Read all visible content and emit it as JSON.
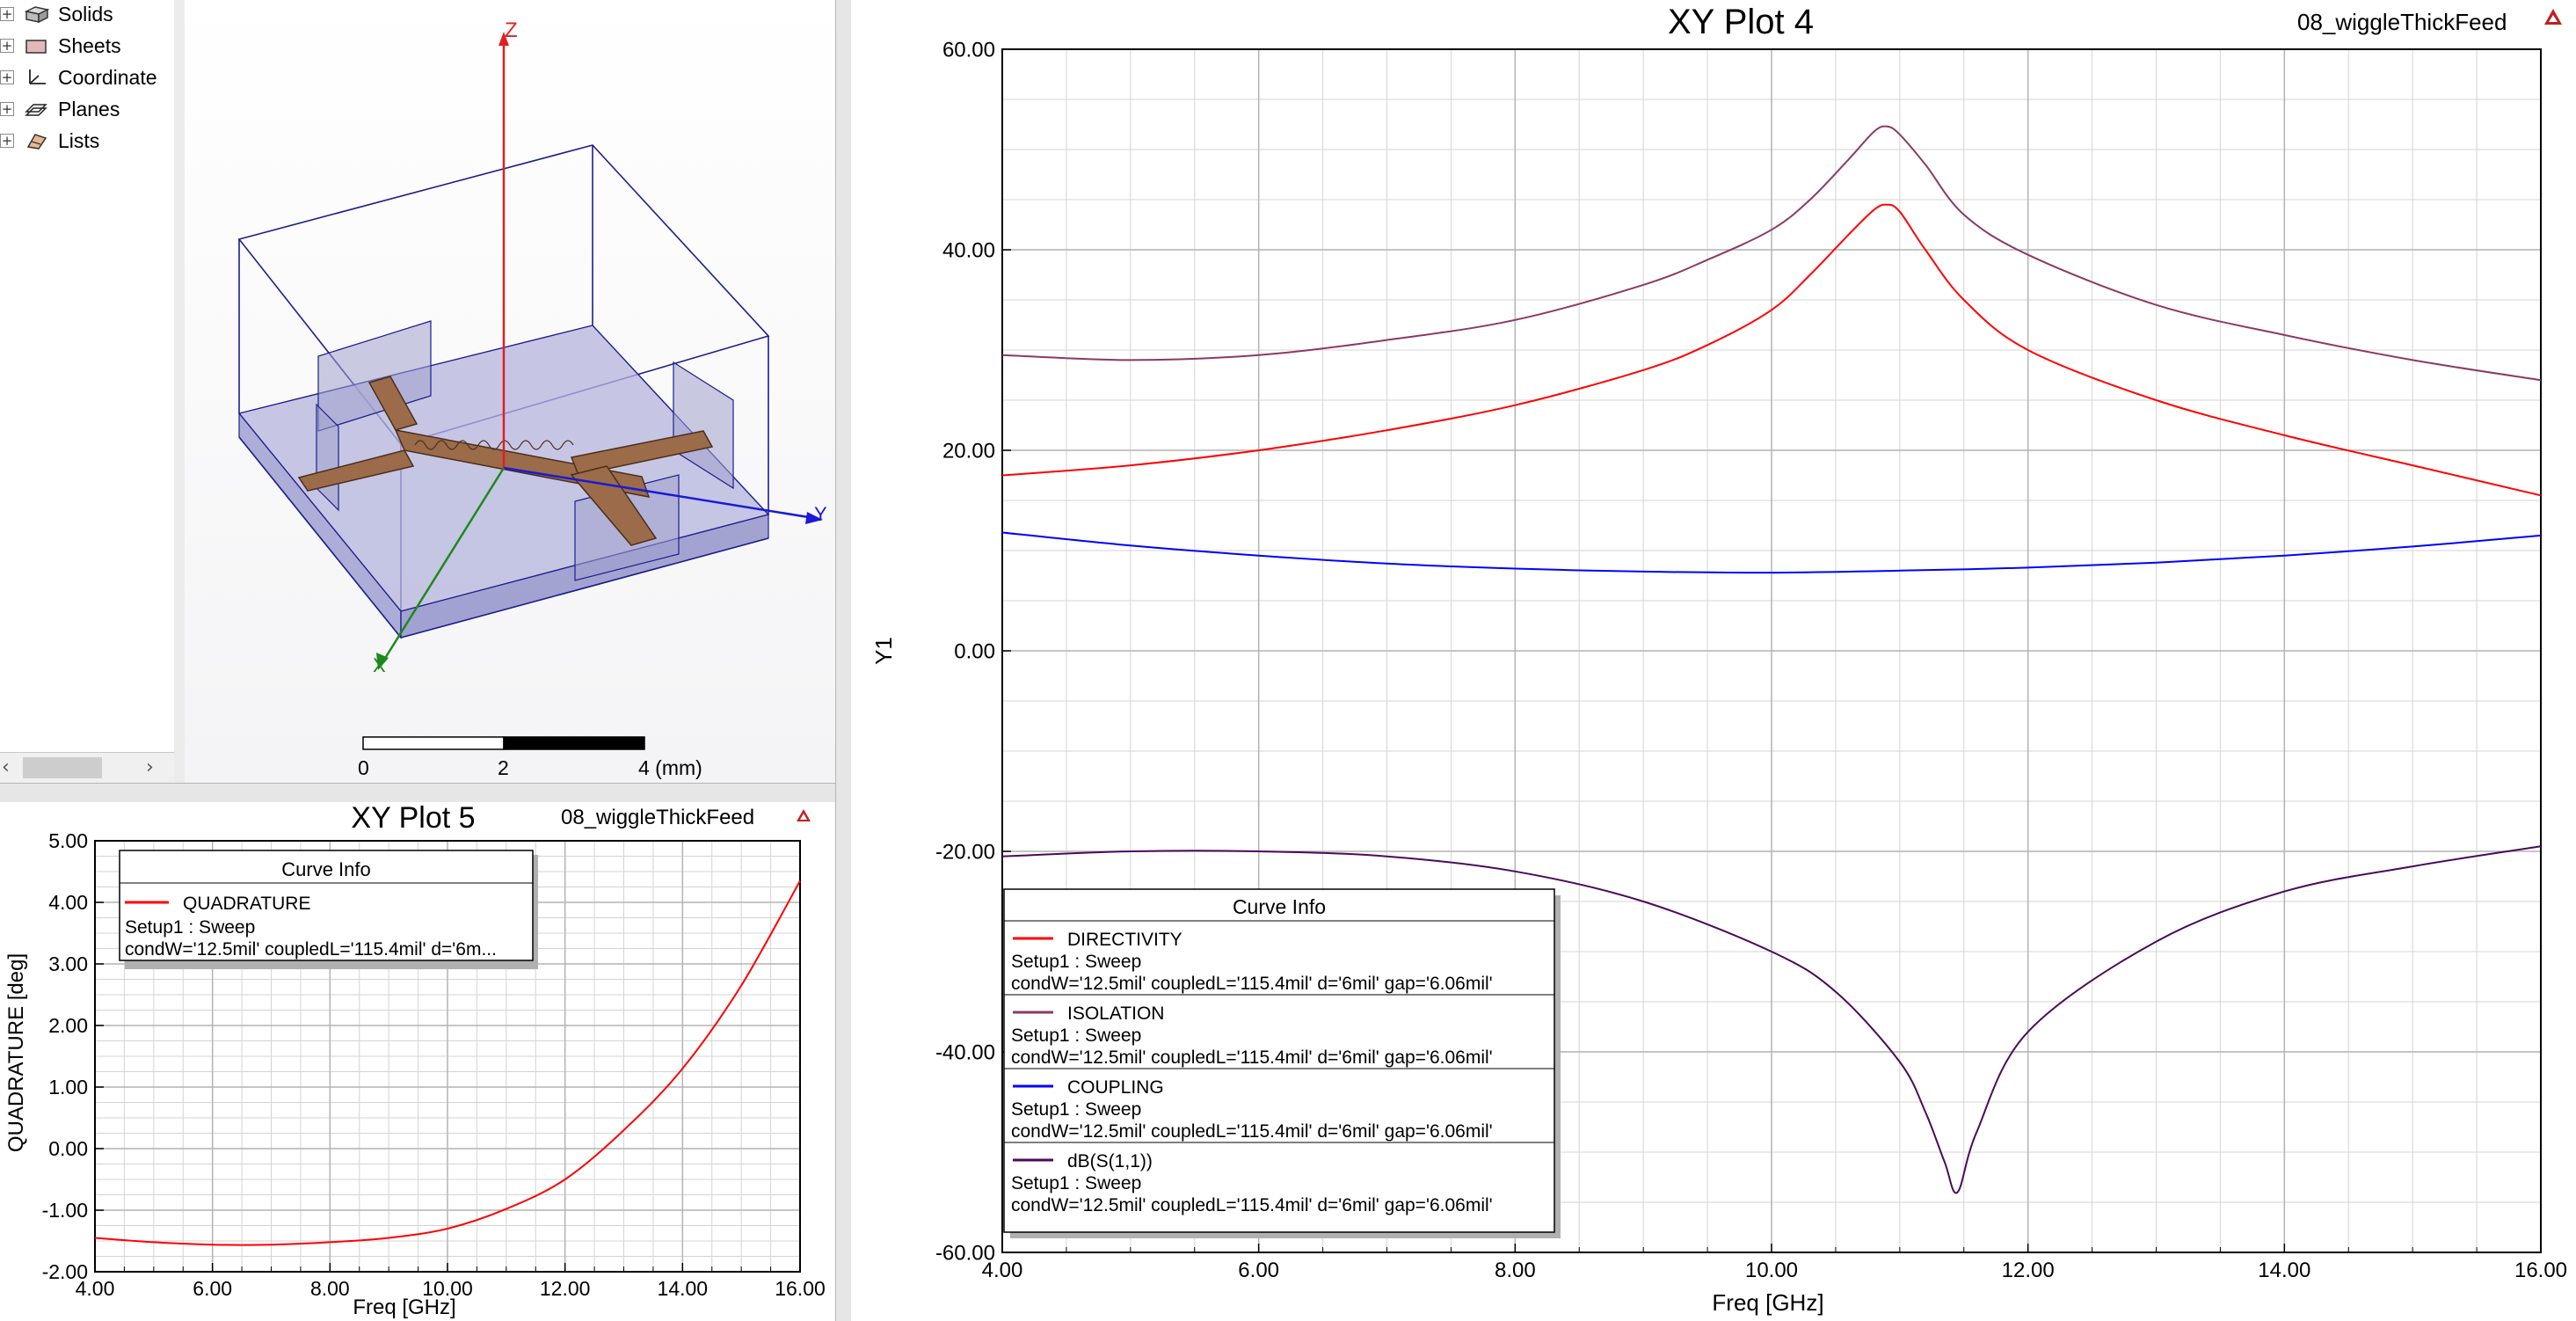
{
  "tree": {
    "items": [
      {
        "label": "Solids",
        "icon": "solids-icon"
      },
      {
        "label": "Sheets",
        "icon": "sheets-icon"
      },
      {
        "label": "Coordinate",
        "icon": "coordinate-icon"
      },
      {
        "label": "Planes",
        "icon": "planes-icon"
      },
      {
        "label": "Lists",
        "icon": "lists-icon"
      }
    ],
    "expander": "+"
  },
  "model_view": {
    "axes": {
      "z": "Z",
      "y": "Y",
      "x": "X"
    },
    "scale_ticks": [
      "0",
      "2",
      "4 (mm)"
    ]
  },
  "plot5": {
    "chart_data": {
      "type": "line",
      "title": "XY Plot 5",
      "project_label": "08_wiggleThickFeed",
      "xlabel": "Freq [GHz]",
      "ylabel": "QUADRATURE [deg]",
      "xlim": [
        4,
        16
      ],
      "ylim": [
        -2,
        5
      ],
      "x_ticks": [
        "4.00",
        "6.00",
        "8.00",
        "10.00",
        "12.00",
        "14.00",
        "16.00"
      ],
      "y_ticks": [
        "-2.00",
        "-1.00",
        "0.00",
        "1.00",
        "2.00",
        "3.00",
        "4.00",
        "5.00"
      ],
      "grid": true,
      "legend": {
        "title": "Curve Info",
        "placement": "top-left",
        "entries": [
          {
            "name": "QUADRATURE",
            "line1": "Setup1 : Sweep",
            "line2": "condW='12.5mil' coupledL='115.4mil' d='6m...",
            "color": "#ff0000"
          }
        ]
      },
      "series": [
        {
          "name": "QUADRATURE",
          "color": "#ff0000",
          "x": [
            4,
            5,
            6,
            7,
            8,
            9,
            10,
            11,
            12,
            13,
            14,
            15,
            16
          ],
          "values": [
            -1.45,
            -1.52,
            -1.56,
            -1.56,
            -1.52,
            -1.45,
            -1.3,
            -0.98,
            -0.5,
            0.3,
            1.3,
            2.65,
            4.35
          ]
        }
      ]
    }
  },
  "plot4": {
    "chart_data": {
      "type": "line",
      "title": "XY Plot 4",
      "project_label": "08_wiggleThickFeed",
      "xlabel": "Freq [GHz]",
      "ylabel": "Y1",
      "xlim": [
        4,
        16
      ],
      "ylim": [
        -60,
        60
      ],
      "x_ticks": [
        "4.00",
        "6.00",
        "8.00",
        "10.00",
        "12.00",
        "14.00",
        "16.00"
      ],
      "y_ticks": [
        "-60.00",
        "-40.00",
        "-20.00",
        "0.00",
        "20.00",
        "40.00",
        "60.00"
      ],
      "grid": true,
      "legend": {
        "title": "Curve Info",
        "placement": "bottom-left",
        "entries": [
          {
            "name": "DIRECTIVITY",
            "line1": "Setup1 : Sweep",
            "line2": "condW='12.5mil' coupledL='115.4mil' d='6mil' gap='6.06mil'",
            "color": "#ff0000"
          },
          {
            "name": "ISOLATION",
            "line1": "Setup1 : Sweep",
            "line2": "condW='12.5mil' coupledL='115.4mil' d='6mil' gap='6.06mil'",
            "color": "#8b3a62"
          },
          {
            "name": "COUPLING",
            "line1": "Setup1 : Sweep",
            "line2": "condW='12.5mil' coupledL='115.4mil' d='6mil' gap='6.06mil'",
            "color": "#0000ff"
          },
          {
            "name": "dB(S(1,1))",
            "line1": "Setup1 : Sweep",
            "line2": "condW='12.5mil' coupledL='115.4mil' d='6mil' gap='6.06mil'",
            "color": "#4b0a5a"
          }
        ]
      },
      "series": [
        {
          "name": "DIRECTIVITY",
          "color": "#ff0000",
          "x": [
            4,
            5,
            6,
            7,
            8,
            9,
            9.5,
            10,
            10.3,
            10.6,
            10.8,
            10.9,
            11.0,
            11.2,
            11.5,
            12,
            13,
            14,
            15,
            16
          ],
          "values": [
            17.5,
            18.5,
            20,
            22,
            24.5,
            28,
            30.5,
            34,
            37.5,
            41.5,
            44,
            44.5,
            43.8,
            40,
            35,
            30,
            25,
            21.5,
            18.5,
            15.5
          ]
        },
        {
          "name": "ISOLATION",
          "color": "#8b3a62",
          "x": [
            4,
            5,
            6,
            7,
            8,
            9,
            9.5,
            10,
            10.3,
            10.6,
            10.8,
            10.9,
            11.0,
            11.2,
            11.5,
            12,
            13,
            14,
            15,
            16
          ],
          "values": [
            29.5,
            29,
            29.5,
            31,
            33,
            36.5,
            39,
            42,
            45,
            49,
            51.8,
            52.3,
            51.5,
            48.5,
            43.5,
            39.5,
            34.5,
            31.5,
            29,
            27
          ]
        },
        {
          "name": "COUPLING",
          "color": "#0000ff",
          "x": [
            4,
            5,
            6,
            7,
            8,
            9,
            10,
            11,
            12,
            13,
            14,
            15,
            16
          ],
          "values": [
            11.8,
            10.5,
            9.5,
            8.7,
            8.2,
            7.9,
            7.8,
            8.0,
            8.3,
            8.8,
            9.5,
            10.4,
            11.5
          ]
        },
        {
          "name": "dB(S(1,1))",
          "color": "#4b0a5a",
          "x": [
            4,
            5,
            6,
            7,
            8,
            9,
            10,
            10.5,
            11,
            11.2,
            11.35,
            11.45,
            11.6,
            12,
            13,
            14,
            15,
            16
          ],
          "values": [
            -20.5,
            -20,
            -20,
            -20.5,
            -22,
            -25,
            -30,
            -34,
            -41,
            -46,
            -51,
            -54,
            -48,
            -38,
            -29,
            -24,
            -21.5,
            -19.5
          ]
        }
      ]
    }
  },
  "colors": {
    "grid": "#d4d4d4",
    "axis": "#000000",
    "box_blue": "#1e1e8c",
    "substrate": "#b4b4dc",
    "trace_copper": "#9c6b4a"
  }
}
